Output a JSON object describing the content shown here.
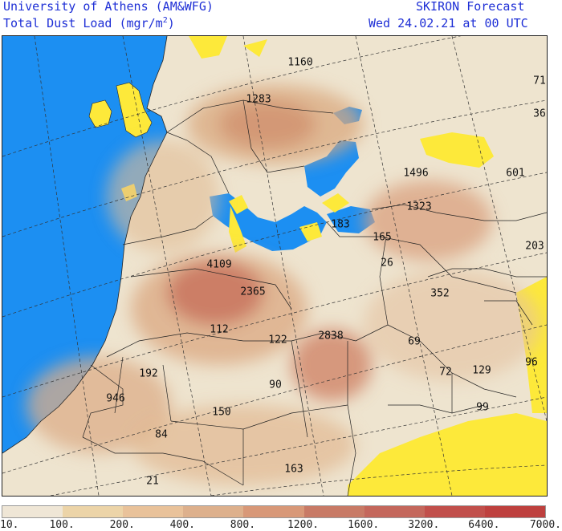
{
  "header": {
    "left_line1": "University of Athens (AM&WFG)",
    "left_line2_prefix": "Total Dust Load (mgr/m",
    "left_line2_sup": "2",
    "left_line2_suffix": ")",
    "right_line1": "SKIRON Forecast",
    "right_line2": "Wed 24.02.21 at 00 UTC"
  },
  "map": {
    "colors": {
      "sea": "#1c8ff2",
      "low_dust": "#fde93a",
      "land_base": "#eee4cf",
      "border": "#222222"
    },
    "labels": [
      {
        "id": "1160",
        "text": "1160"
      },
      {
        "id": "1283",
        "text": "1283"
      },
      {
        "id": "71",
        "text": "71"
      },
      {
        "id": "36",
        "text": "36"
      },
      {
        "id": "1496",
        "text": "1496"
      },
      {
        "id": "601",
        "text": "601"
      },
      {
        "id": "1323",
        "text": "1323"
      },
      {
        "id": "183",
        "text": "183"
      },
      {
        "id": "165",
        "text": "165"
      },
      {
        "id": "203",
        "text": "203"
      },
      {
        "id": "4109",
        "text": "4109"
      },
      {
        "id": "26",
        "text": "26"
      },
      {
        "id": "2365",
        "text": "2365"
      },
      {
        "id": "352",
        "text": "352"
      },
      {
        "id": "112",
        "text": "112"
      },
      {
        "id": "122",
        "text": "122"
      },
      {
        "id": "2838",
        "text": "2838"
      },
      {
        "id": "69",
        "text": "69"
      },
      {
        "id": "96",
        "text": "96"
      },
      {
        "id": "192",
        "text": "192"
      },
      {
        "id": "72",
        "text": "72"
      },
      {
        "id": "129",
        "text": "129"
      },
      {
        "id": "90",
        "text": "90"
      },
      {
        "id": "946",
        "text": "946"
      },
      {
        "id": "99",
        "text": "99"
      },
      {
        "id": "150",
        "text": "150"
      },
      {
        "id": "84",
        "text": "84"
      },
      {
        "id": "163",
        "text": "163"
      },
      {
        "id": "21",
        "text": "21"
      }
    ]
  },
  "colorbar": {
    "colors": [
      "#efe6d6",
      "#ecd4a8",
      "#e9c29a",
      "#ddb08c",
      "#d89878",
      "#c87a66",
      "#c4675c",
      "#c14f4b",
      "#be403e"
    ],
    "ticks": [
      "10.",
      "100.",
      "200.",
      "400.",
      "800.",
      "1200.",
      "1600.",
      "3200.",
      "6400.",
      "7000."
    ]
  }
}
